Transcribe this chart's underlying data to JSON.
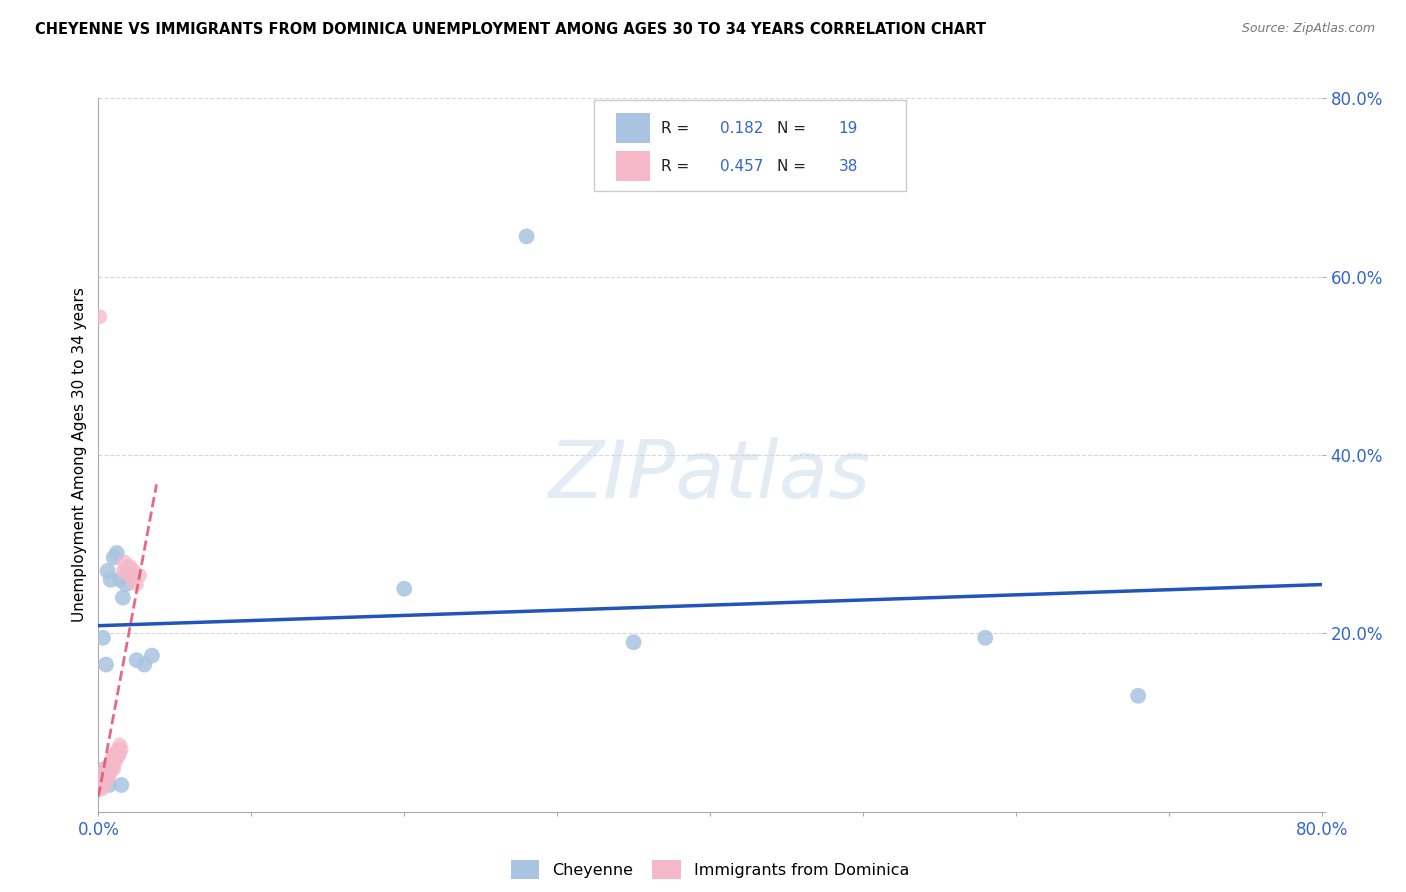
{
  "title": "CHEYENNE VS IMMIGRANTS FROM DOMINICA UNEMPLOYMENT AMONG AGES 30 TO 34 YEARS CORRELATION CHART",
  "source": "Source: ZipAtlas.com",
  "ylabel": "Unemployment Among Ages 30 to 34 years",
  "watermark": "ZIPatlas",
  "xlim": [
    0,
    0.8
  ],
  "ylim": [
    0,
    0.8
  ],
  "cheyenne_color": "#a8c4e0",
  "dominica_color": "#f4b8c8",
  "cheyenne_line_color": "#2255bb",
  "dominica_line_color": "#e05070",
  "legend_R1": "0.182",
  "legend_N1": "19",
  "legend_R2": "0.457",
  "legend_N2": "38",
  "cheyenne_x": [
    0.003,
    0.005,
    0.006,
    0.008,
    0.01,
    0.012,
    0.014,
    0.016,
    0.018,
    0.02,
    0.025,
    0.03,
    0.035,
    0.2,
    0.35,
    0.58,
    0.68,
    0.004,
    0.007,
    0.015
  ],
  "cheyenne_y": [
    0.195,
    0.165,
    0.27,
    0.26,
    0.285,
    0.29,
    0.26,
    0.24,
    0.255,
    0.265,
    0.17,
    0.165,
    0.175,
    0.25,
    0.19,
    0.195,
    0.13,
    0.048,
    0.03,
    0.03
  ],
  "cheyenne_outlier_x": [
    0.28
  ],
  "cheyenne_outlier_y": [
    0.645
  ],
  "dominica_x": [
    0.001,
    0.002,
    0.002,
    0.003,
    0.003,
    0.004,
    0.004,
    0.005,
    0.005,
    0.006,
    0.006,
    0.007,
    0.007,
    0.008,
    0.008,
    0.009,
    0.009,
    0.01,
    0.01,
    0.011,
    0.011,
    0.012,
    0.012,
    0.013,
    0.013,
    0.014,
    0.014,
    0.015,
    0.016,
    0.017,
    0.018,
    0.019,
    0.02,
    0.021,
    0.022,
    0.023,
    0.025,
    0.027
  ],
  "dominica_y": [
    0.03,
    0.025,
    0.035,
    0.028,
    0.04,
    0.032,
    0.045,
    0.035,
    0.048,
    0.04,
    0.05,
    0.038,
    0.052,
    0.045,
    0.055,
    0.05,
    0.06,
    0.048,
    0.062,
    0.055,
    0.065,
    0.06,
    0.068,
    0.062,
    0.07,
    0.065,
    0.075,
    0.07,
    0.27,
    0.28,
    0.27,
    0.275,
    0.265,
    0.275,
    0.26,
    0.27,
    0.255,
    0.265
  ],
  "dominica_outlier_x": [
    0.001
  ],
  "dominica_outlier_y": [
    0.555
  ],
  "bg_color": "#ffffff",
  "grid_color": "#d8d8d8",
  "dominica_trendline_x": [
    0.0,
    0.045
  ],
  "cheyenne_trendline_intercept": 0.185,
  "cheyenne_trendline_slope": 0.09,
  "dominica_trendline_intercept": 0.02,
  "dominica_trendline_slope": 8.5
}
